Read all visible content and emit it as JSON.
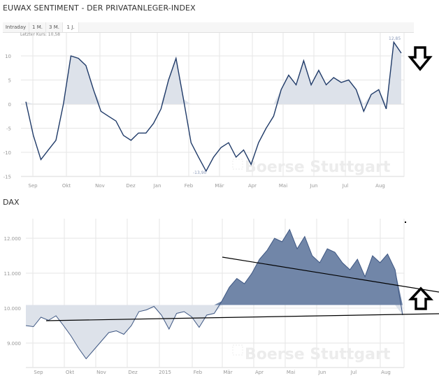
{
  "top": {
    "title": "EUWAX SENTIMENT - DER PRIVATANLEGER-INDEX",
    "tabs": [
      {
        "label": "Intraday",
        "active": false
      },
      {
        "label": "1 M.",
        "active": false
      },
      {
        "label": "3 M.",
        "active": false
      },
      {
        "label": "1 J.",
        "active": true
      }
    ],
    "last_price_label": "Letzter Kurs: 10,58",
    "max_label": "12,85",
    "min_label": "-13,90",
    "watermark": "Boerse Stuttgart"
  },
  "bottom": {
    "title": "DAX",
    "watermark": "Boerse Stuttgart"
  },
  "annotations": {
    "arrow_down_color": "#000000",
    "arrow_up_color": "#000000"
  },
  "colors": {
    "line": "#1f3a68",
    "fill_light": "#dde2ea",
    "fill_dark": "#7186a8",
    "grid": "#e6e6e6",
    "axis_text": "#999999"
  },
  "chart_data": [
    {
      "type": "area",
      "title": "EUWAX SENTIMENT - DER PRIVATANLEGER-INDEX",
      "xlabel": "",
      "ylabel": "",
      "categories": [
        "Sep",
        "Okt",
        "Nov",
        "Dez",
        "Jan",
        "Feb",
        "Mär",
        "Apr",
        "Mai",
        "Jun",
        "Jul",
        "Aug"
      ],
      "yticks": [
        10,
        5,
        0,
        -5,
        -10,
        -15
      ],
      "ylim": [
        -15,
        13
      ],
      "grid": true,
      "baseline": 0,
      "annotations": [
        "Letzter Kurs: 10,58",
        "max 12,85",
        "min -13,90"
      ],
      "x": [
        0,
        0.02,
        0.04,
        0.06,
        0.08,
        0.1,
        0.12,
        0.14,
        0.16,
        0.18,
        0.2,
        0.22,
        0.24,
        0.26,
        0.28,
        0.3,
        0.32,
        0.34,
        0.36,
        0.38,
        0.4,
        0.42,
        0.44,
        0.46,
        0.48,
        0.5,
        0.52,
        0.54,
        0.56,
        0.58,
        0.6,
        0.62,
        0.64,
        0.66,
        0.68,
        0.7,
        0.72,
        0.74,
        0.76,
        0.78,
        0.8,
        0.82,
        0.84,
        0.86,
        0.88,
        0.9,
        0.92,
        0.94,
        0.96,
        0.98,
        1.0
      ],
      "values": [
        0.5,
        -6.5,
        -11.5,
        -9.5,
        -7.5,
        0,
        10,
        9.5,
        8,
        3,
        -1.5,
        -2.5,
        -3.5,
        -6.5,
        -7.5,
        -6,
        -6,
        -4,
        -1,
        5,
        9.5,
        1,
        -8,
        -11,
        -13.9,
        -11,
        -9,
        -8,
        -11,
        -9.5,
        -12.5,
        -8,
        -5,
        -2.5,
        3,
        6,
        4,
        9,
        4,
        7,
        4,
        5.5,
        4.5,
        5,
        3,
        -1.5,
        2,
        3,
        -1,
        12.85,
        10.58
      ]
    },
    {
      "type": "area",
      "title": "DAX",
      "xlabel": "",
      "ylabel": "",
      "categories": [
        "Sep",
        "Okt",
        "Nov",
        "Dez",
        "2015",
        "Feb",
        "Mär",
        "Apr",
        "Mai",
        "Jun",
        "Jul",
        "Aug"
      ],
      "yticks": [
        12000,
        11000,
        10000,
        9000
      ],
      "ylim": [
        8400,
        12500
      ],
      "grid": true,
      "baseline": 10090,
      "x": [
        0,
        0.02,
        0.04,
        0.06,
        0.08,
        0.1,
        0.12,
        0.14,
        0.16,
        0.18,
        0.2,
        0.22,
        0.24,
        0.26,
        0.28,
        0.3,
        0.32,
        0.34,
        0.36,
        0.38,
        0.4,
        0.42,
        0.44,
        0.46,
        0.48,
        0.5,
        0.52,
        0.54,
        0.56,
        0.58,
        0.6,
        0.62,
        0.64,
        0.66,
        0.68,
        0.7,
        0.72,
        0.74,
        0.76,
        0.78,
        0.8,
        0.82,
        0.84,
        0.86,
        0.88,
        0.9,
        0.92,
        0.94,
        0.96,
        0.98,
        1.0
      ],
      "values": [
        9500,
        9470,
        9740,
        9650,
        9780,
        9500,
        9200,
        8850,
        8550,
        8800,
        9050,
        9300,
        9350,
        9250,
        9500,
        9900,
        9950,
        10050,
        9800,
        9400,
        9850,
        9900,
        9750,
        9450,
        9800,
        9850,
        10200,
        10600,
        10850,
        10700,
        11000,
        11400,
        11650,
        12000,
        11900,
        12250,
        11700,
        12050,
        11500,
        11300,
        11700,
        11600,
        11300,
        11100,
        11400,
        10900,
        11500,
        11300,
        11550,
        11100,
        9800
      ],
      "trendlines": [
        {
          "name": "support",
          "from": [
            9650,
            0.14
          ],
          "to": [
            9830,
            1.1
          ]
        },
        {
          "name": "resistance",
          "from": [
            11400,
            0.52
          ],
          "to": [
            10450,
            1.1
          ]
        }
      ]
    }
  ]
}
